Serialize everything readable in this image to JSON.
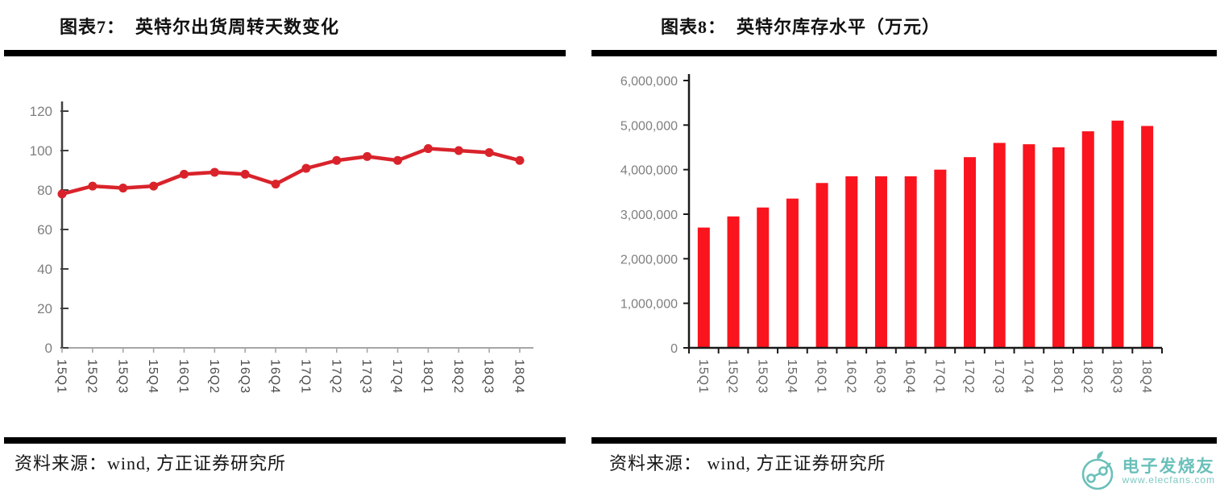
{
  "figures": [
    {
      "title": "图表7：  英特尔出货周转天数变化",
      "source": "资料来源：wind, 方正证券研究所"
    },
    {
      "title": "图表8：  英特尔库存水平（万元）",
      "source": "资料来源： wind, 方正证券研究所"
    }
  ],
  "watermark": {
    "brand": "电子发烧友",
    "url": "www.elecfans.com",
    "color": "#56b8b1",
    "logo": "elecfans-circuit-logo"
  },
  "chart_data": [
    {
      "type": "line",
      "title": "图表7： 英特尔出货周转天数变化",
      "categories": [
        "15Q1",
        "15Q2",
        "15Q3",
        "15Q4",
        "16Q1",
        "16Q2",
        "16Q3",
        "16Q4",
        "17Q1",
        "17Q2",
        "17Q3",
        "17Q4",
        "18Q1",
        "18Q2",
        "18Q3",
        "18Q4"
      ],
      "values": [
        78,
        82,
        81,
        82,
        88,
        89,
        88,
        83,
        91,
        95,
        97,
        95,
        101,
        100,
        99,
        95
      ],
      "xlabel": "",
      "ylabel": "",
      "ylim": [
        0,
        120
      ],
      "yticks": [
        0,
        20,
        40,
        60,
        80,
        100,
        120
      ],
      "grid": false,
      "legend": "none",
      "x_label_rotation": 90,
      "line_color": "#d9232b",
      "marker": "circle",
      "axis_color": "#404040",
      "baseline_color": "#a6a6a6",
      "tick_label_color": "#7f7f7f",
      "x_label_color": "#4d4d4d"
    },
    {
      "type": "bar",
      "title": "图表8： 英特尔库存水平（万元）",
      "categories": [
        "15Q1",
        "15Q2",
        "15Q3",
        "15Q4",
        "16Q1",
        "16Q2",
        "16Q3",
        "16Q4",
        "17Q1",
        "17Q2",
        "17Q3",
        "17Q4",
        "18Q1",
        "18Q2",
        "18Q3",
        "18Q4"
      ],
      "values": [
        2700000,
        2950000,
        3150000,
        3350000,
        3700000,
        3850000,
        3850000,
        3850000,
        4000000,
        4280000,
        4600000,
        4570000,
        4500000,
        4860000,
        5100000,
        4980000
      ],
      "xlabel": "",
      "ylabel": "",
      "ylim": [
        0,
        6000000
      ],
      "yticks": [
        0,
        1000000,
        2000000,
        3000000,
        4000000,
        5000000,
        6000000
      ],
      "grid": false,
      "legend": "none",
      "x_label_rotation": 90,
      "bar_color": "#f9141e",
      "axis_color": "#1a1a1a",
      "tick_label_color": "#7f7f7f",
      "x_label_color": "#666666"
    }
  ]
}
